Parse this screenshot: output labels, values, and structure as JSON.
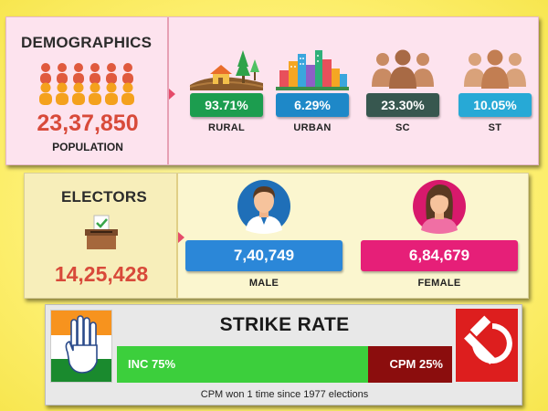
{
  "demographics": {
    "title": "DEMOGRAPHICS",
    "population_value": "23,37,850",
    "population_label": "POPULATION",
    "stats": [
      {
        "value": "93.71%",
        "label": "RURAL",
        "color": "#1c9d4f"
      },
      {
        "value": "6.29%",
        "label": "URBAN",
        "color": "#1e88c8"
      },
      {
        "value": "23.30%",
        "label": "SC",
        "color": "#37574f"
      },
      {
        "value": "10.05%",
        "label": "ST",
        "color": "#27a9d6"
      }
    ]
  },
  "electors": {
    "title": "ELECTORS",
    "total": "14,25,428",
    "male": {
      "value": "7,40,749",
      "label": "MALE",
      "color": "#2b87d8"
    },
    "female": {
      "value": "6,84,679",
      "label": "FEMALE",
      "color": "#e61f78"
    }
  },
  "strike_rate": {
    "title": "STRIKE RATE",
    "inc_label": "INC 75%",
    "cpm_label": "CPM 25%",
    "inc_share": 0.75,
    "cpm_share": 0.25,
    "inc_color": "#3ccf3c",
    "cpm_color": "#8b0d0d",
    "note": "CPM won 1 time since 1977 elections"
  },
  "icons": [
    "crowd-icon",
    "rural-landscape-icon",
    "city-skyline-icon",
    "people-group-icon",
    "ballot-box-icon",
    "male-avatar-icon",
    "female-avatar-icon",
    "hand-symbol-icon",
    "hammer-sickle-icon"
  ]
}
